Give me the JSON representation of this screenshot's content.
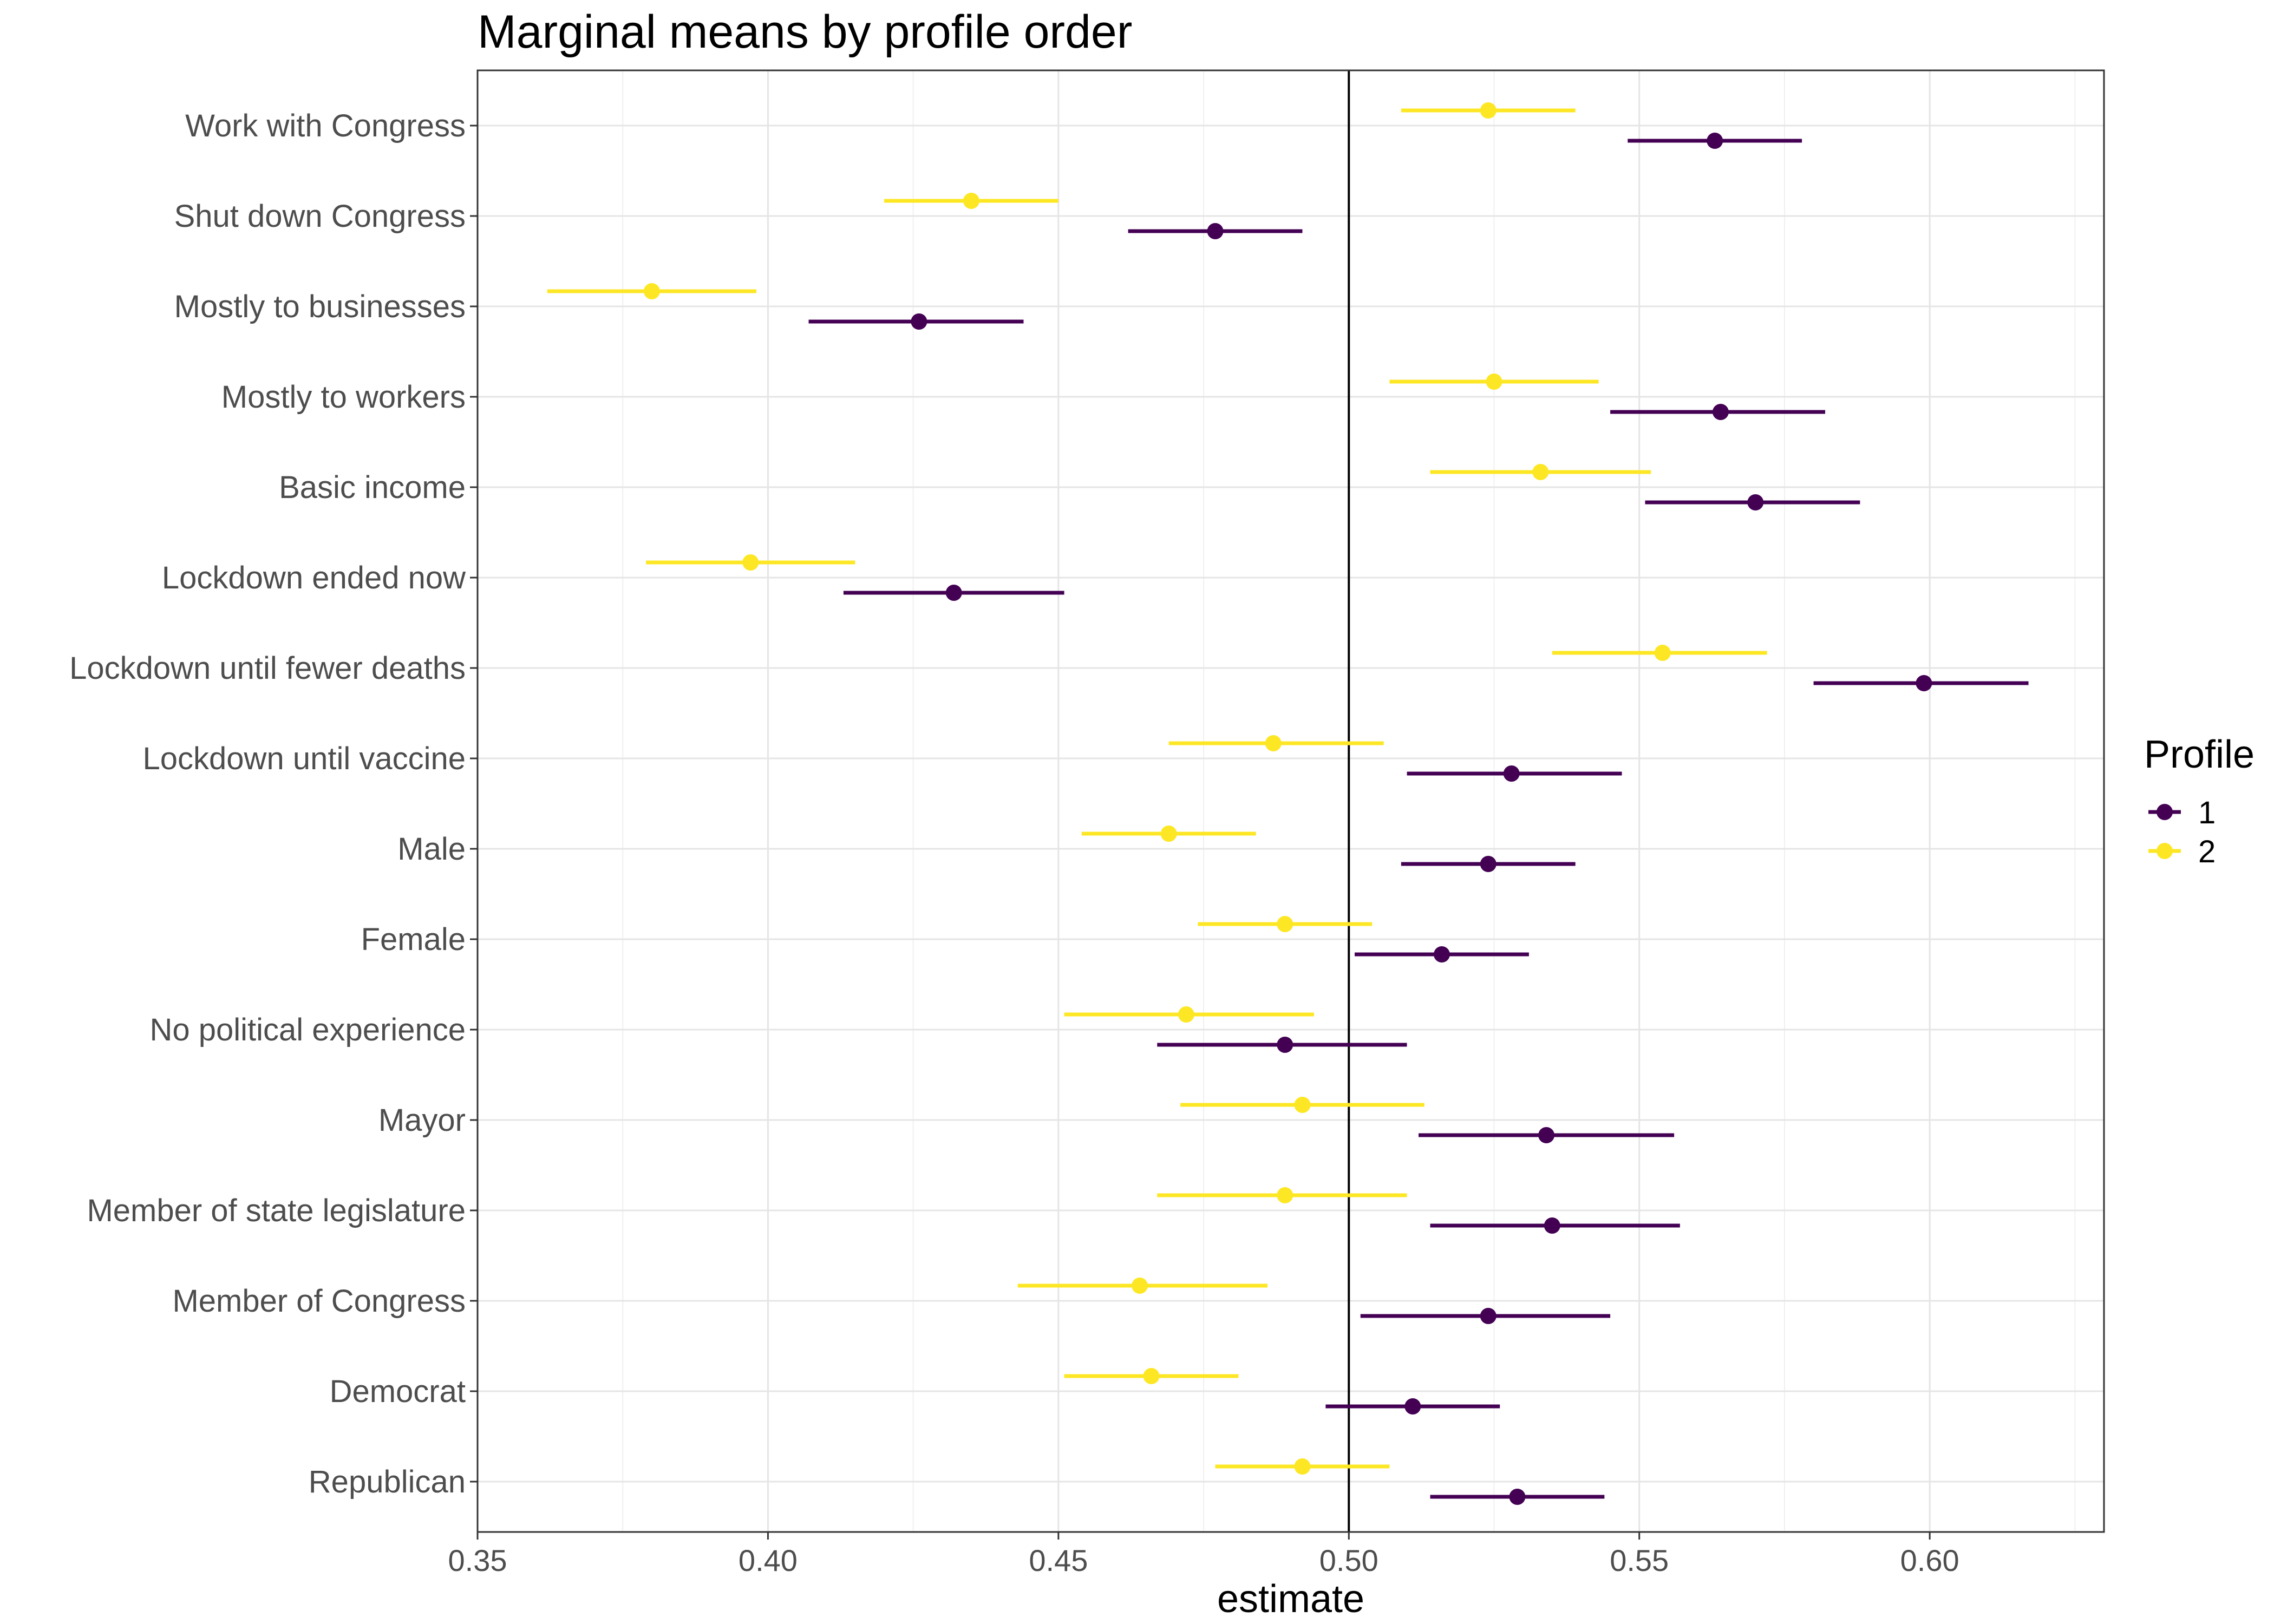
{
  "chart_data": {
    "type": "scatter",
    "subtype": "point-range (estimate with confidence interval)",
    "title": "Marginal means by profile order",
    "xlabel": "estimate",
    "ylabel": "",
    "xlim": [
      0.35,
      0.63
    ],
    "x_ticks": [
      "0.35",
      "0.40",
      "0.45",
      "0.50",
      "0.55",
      "0.60"
    ],
    "reference_line_x": 0.5,
    "grid": true,
    "legend": {
      "title": "Profile",
      "position": "right"
    },
    "categories": [
      "Work with Congress",
      "Shut down Congress",
      "Mostly to businesses",
      "Mostly to workers",
      "Basic income",
      "Lockdown ended now",
      "Lockdown until fewer deaths",
      "Lockdown until vaccine",
      "Male",
      "Female",
      "No political experience",
      "Mayor",
      "Member of state legislature",
      "Member of Congress",
      "Democrat",
      "Republican"
    ],
    "series": [
      {
        "name": "1",
        "color": "#440154",
        "estimate": [
          0.563,
          0.477,
          0.426,
          0.564,
          0.57,
          0.432,
          0.599,
          0.528,
          0.524,
          0.516,
          0.489,
          0.534,
          0.535,
          0.524,
          0.511,
          0.529
        ],
        "lower": [
          0.548,
          0.462,
          0.407,
          0.545,
          0.551,
          0.413,
          0.58,
          0.51,
          0.509,
          0.501,
          0.467,
          0.512,
          0.514,
          0.502,
          0.496,
          0.514
        ],
        "upper": [
          0.578,
          0.492,
          0.444,
          0.582,
          0.588,
          0.451,
          0.617,
          0.547,
          0.539,
          0.531,
          0.51,
          0.556,
          0.557,
          0.545,
          0.526,
          0.544
        ]
      },
      {
        "name": "2",
        "color": "#fde725",
        "estimate": [
          0.524,
          0.435,
          0.38,
          0.525,
          0.533,
          0.397,
          0.554,
          0.487,
          0.469,
          0.489,
          0.472,
          0.492,
          0.489,
          0.464,
          0.466,
          0.492
        ],
        "lower": [
          0.509,
          0.42,
          0.362,
          0.507,
          0.514,
          0.379,
          0.535,
          0.469,
          0.454,
          0.474,
          0.451,
          0.471,
          0.467,
          0.443,
          0.451,
          0.477
        ],
        "upper": [
          0.539,
          0.45,
          0.398,
          0.543,
          0.552,
          0.415,
          0.572,
          0.506,
          0.484,
          0.504,
          0.494,
          0.513,
          0.51,
          0.486,
          0.481,
          0.507
        ]
      }
    ]
  }
}
